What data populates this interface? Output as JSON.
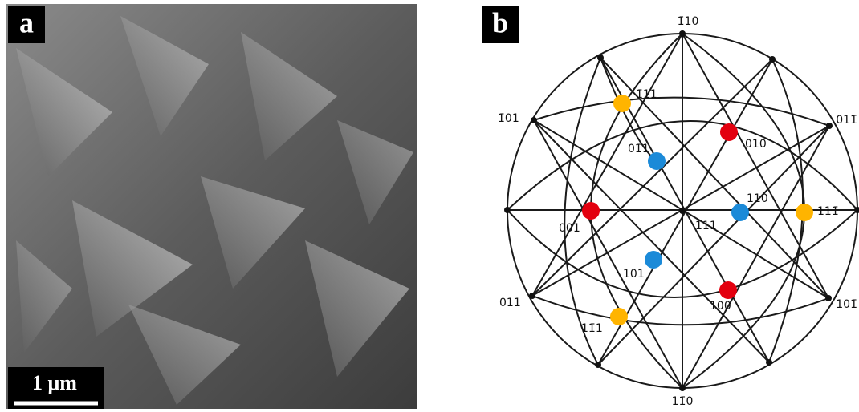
{
  "panel_a": {
    "label": "a",
    "scale_bar": "1 μm"
  },
  "panel_b": {
    "label": "b",
    "poles": [
      {
        "label": "1̄10"
      },
      {
        "label": "1̄11"
      },
      {
        "label": "1̄01"
      },
      {
        "label": "011̄"
      },
      {
        "label": "01̄1"
      },
      {
        "label": "010"
      },
      {
        "label": "110"
      },
      {
        "label": "111̄"
      },
      {
        "label": "111"
      },
      {
        "label": "001"
      },
      {
        "label": "101"
      },
      {
        "label": "100"
      },
      {
        "label": "011"
      },
      {
        "label": "101̄"
      },
      {
        "label": "11̄1"
      },
      {
        "label": "11̄0"
      }
    ]
  }
}
